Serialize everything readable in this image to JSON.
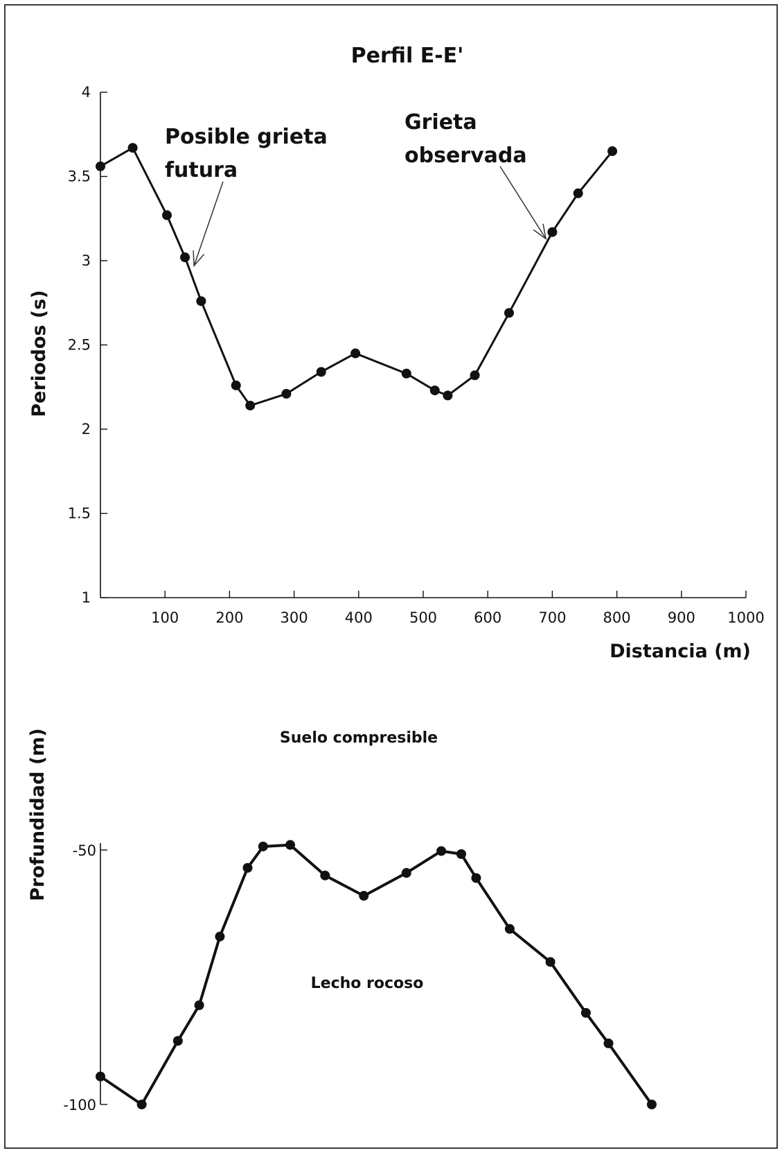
{
  "chart_data": [
    {
      "type": "line",
      "title": "Perfil E-E'",
      "xlabel": "Distancia (m)",
      "ylabel": "Periodos (s)",
      "xlim": [
        0,
        1000
      ],
      "ylim": [
        1,
        4
      ],
      "x_ticks": [
        "100",
        "200",
        "300",
        "400",
        "500",
        "600",
        "700",
        "800",
        "900",
        "1000"
      ],
      "y_ticks": [
        "1",
        "1.5",
        "2",
        "2.5",
        "3",
        "3.5",
        "4"
      ],
      "series": [
        {
          "x": [
            0,
            50,
            103,
            131,
            156,
            210,
            232,
            288,
            342,
            395,
            474,
            518,
            538,
            580,
            633,
            700,
            740,
            793
          ],
          "y": [
            3.56,
            3.67,
            3.27,
            3.02,
            2.76,
            2.26,
            2.14,
            2.21,
            2.34,
            2.45,
            2.33,
            2.23,
            2.2,
            2.32,
            2.69,
            3.17,
            3.4,
            3.65
          ]
        }
      ],
      "annotations": [
        {
          "text_lines": [
            "Posible grieta",
            "futura"
          ],
          "arrow_to": [
            145,
            2.97
          ]
        },
        {
          "text_lines": [
            "Grieta",
            "observada"
          ],
          "arrow_to": [
            690,
            3.13
          ]
        }
      ],
      "grid": false
    },
    {
      "type": "line",
      "ylabel": "Profundidad (m)",
      "y_ticks": [
        "-50",
        "-100"
      ],
      "ylim_ref": [
        -100,
        -50
      ],
      "series": [
        {
          "x": [
            0,
            64,
            120,
            153,
            185,
            228,
            252,
            294,
            348,
            408,
            474,
            528,
            559,
            582,
            634,
            697,
            752,
            787,
            854
          ],
          "y": [
            -94.5,
            -100,
            -87.5,
            -80.5,
            -67,
            -53.5,
            -49.3,
            -49,
            -55,
            -59,
            -54.5,
            -50.2,
            -50.8,
            -55.5,
            -65.5,
            -72,
            -82,
            -88,
            -100
          ]
        }
      ],
      "region_labels": [
        "Suelo compresible",
        "Lecho rocoso"
      ],
      "grid": false
    }
  ]
}
